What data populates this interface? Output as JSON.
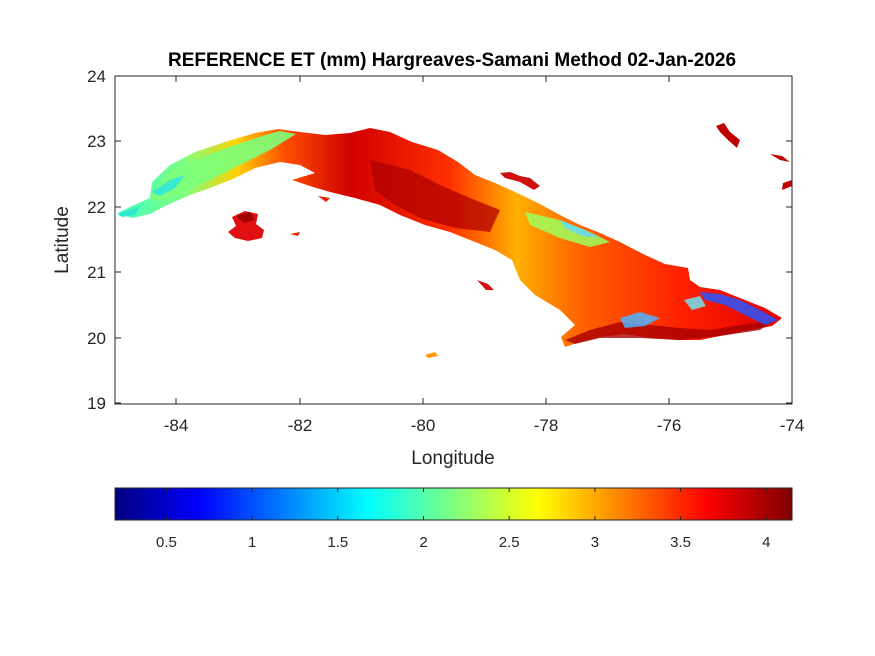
{
  "map": {
    "title": "REFERENCE ET (mm) Hargreaves-Samani Method  02-Jan-2026",
    "xlabel": "Longitude",
    "ylabel": "Latitude",
    "xlim": [
      -85,
      -74
    ],
    "ylim": [
      19,
      24
    ],
    "xticks": [
      "-84",
      "-82",
      "-80",
      "-78",
      "-76",
      "-74"
    ],
    "yticks": [
      "19",
      "20",
      "21",
      "22",
      "23",
      "24"
    ],
    "colormap": "jet",
    "colors": {
      "dark_blue": "#00007f",
      "blue": "#0000ff",
      "cyan": "#00ffff",
      "yellow": "#ffff00",
      "red": "#ff0000",
      "dark_red": "#7f0000"
    }
  },
  "colorbar": {
    "range": [
      0.2,
      4.15
    ],
    "ticks": [
      "0.5",
      "1",
      "1.5",
      "2",
      "2.5",
      "3",
      "3.5",
      "4"
    ]
  }
}
